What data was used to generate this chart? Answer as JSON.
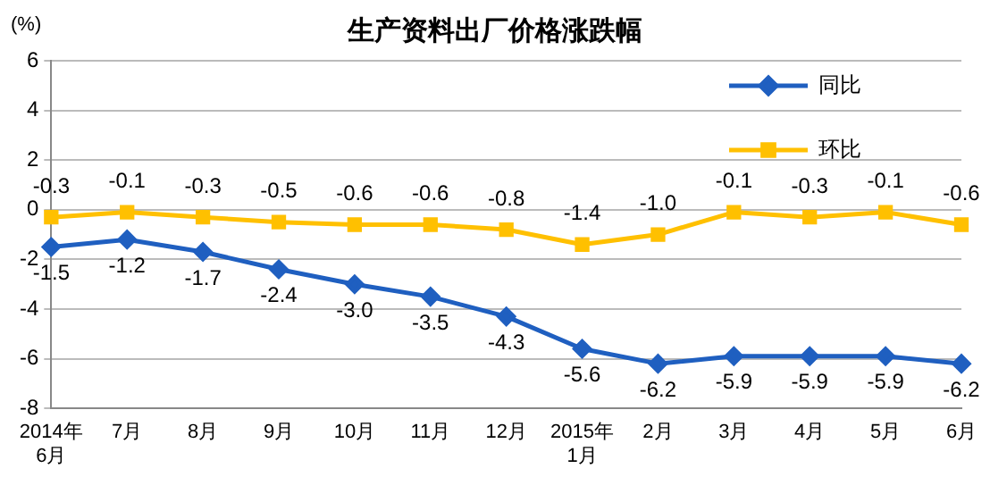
{
  "chart_data": {
    "type": "line",
    "title": "生产资料出厂价格涨跌幅",
    "ylabel": "(%)",
    "categories": [
      "2014年\n6月",
      "7月",
      "8月",
      "9月",
      "10月",
      "11月",
      "12月",
      "2015年\n1月",
      "2月",
      "3月",
      "4月",
      "5月",
      "6月"
    ],
    "series": [
      {
        "name": "同比",
        "color": "#1f5fc0",
        "marker": "diamond",
        "values": [
          -1.5,
          -1.2,
          -1.7,
          -2.4,
          -3.0,
          -3.5,
          -4.3,
          -5.6,
          -6.2,
          -5.9,
          -5.9,
          -5.9,
          -6.2
        ],
        "value_labels": [
          "-1.5",
          "-1.2",
          "-1.7",
          "-2.4",
          "-3.0",
          "-3.5",
          "-4.3",
          "-5.6",
          "-6.2",
          "-5.9",
          "-5.9",
          "-5.9",
          "-6.2"
        ]
      },
      {
        "name": "环比",
        "color": "#ffc000",
        "marker": "square",
        "values": [
          -0.3,
          -0.1,
          -0.3,
          -0.5,
          -0.6,
          -0.6,
          -0.8,
          -1.4,
          -1.0,
          -0.1,
          -0.3,
          -0.1,
          -0.6
        ],
        "value_labels": [
          "-0.3",
          "-0.1",
          "-0.3",
          "-0.5",
          "-0.6",
          "-0.6",
          "-0.8",
          "-1.4",
          "-1.0",
          "-0.1",
          "-0.3",
          "-0.1",
          "-0.6"
        ]
      }
    ],
    "ylim": [
      -8,
      6
    ],
    "yticks": [
      -8,
      -6,
      -4,
      -2,
      0,
      2,
      4,
      6
    ],
    "grid": "y",
    "legend": "top right",
    "line_style": "solid"
  }
}
